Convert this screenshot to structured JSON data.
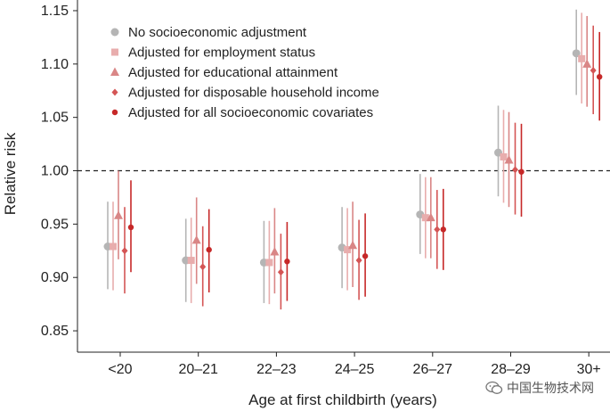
{
  "chart_data": {
    "type": "scatter",
    "subtype": "point-range",
    "xlabel": "Age at first childbirth (years)",
    "ylabel": "Relative risk",
    "categories": [
      "<20",
      "20–21",
      "22–23",
      "24–25",
      "26–27",
      "28–29",
      "30+"
    ],
    "ylim": [
      0.83,
      1.16
    ],
    "yticks": [
      0.85,
      0.9,
      0.95,
      1.0,
      1.05,
      1.1,
      1.15
    ],
    "ytick_labels": [
      "0.85",
      "0.90",
      "0.95",
      "1.00",
      "1.05",
      "1.10",
      "1.15"
    ],
    "reference_line": 1.0,
    "legend_position": "top-left",
    "series": [
      {
        "name": "No socioeconomic adjustment",
        "marker": "circle",
        "color": "#b5b5b5",
        "values": [
          0.929,
          0.916,
          0.914,
          0.928,
          0.959,
          1.017,
          1.11
        ],
        "lower": [
          0.889,
          0.877,
          0.876,
          0.89,
          0.922,
          0.976,
          1.071
        ],
        "upper": [
          0.971,
          0.955,
          0.953,
          0.966,
          0.997,
          1.061,
          1.151
        ]
      },
      {
        "name": "Adjusted for employment status",
        "marker": "square",
        "color": "#e8adad",
        "values": [
          0.929,
          0.916,
          0.914,
          0.926,
          0.956,
          1.013,
          1.105
        ],
        "lower": [
          0.888,
          0.876,
          0.875,
          0.888,
          0.918,
          0.97,
          1.063
        ],
        "upper": [
          0.971,
          0.956,
          0.953,
          0.965,
          0.994,
          1.057,
          1.148
        ]
      },
      {
        "name": "Adjusted for educational attainment",
        "marker": "triangle",
        "color": "#d98686",
        "values": [
          0.958,
          0.935,
          0.924,
          0.93,
          0.956,
          1.01,
          1.1
        ],
        "lower": [
          0.917,
          0.894,
          0.885,
          0.891,
          0.918,
          0.966,
          1.06
        ],
        "upper": [
          1.0,
          0.975,
          0.965,
          0.971,
          0.994,
          1.055,
          1.145
        ]
      },
      {
        "name": "Adjusted for disposable household income",
        "marker": "diamond",
        "color": "#d45555",
        "values": [
          0.925,
          0.91,
          0.905,
          0.916,
          0.945,
          1.001,
          1.094
        ],
        "lower": [
          0.885,
          0.873,
          0.87,
          0.879,
          0.908,
          0.959,
          1.053
        ],
        "upper": [
          0.966,
          0.948,
          0.941,
          0.954,
          0.982,
          1.045,
          1.136
        ]
      },
      {
        "name": "Adjusted for all socioeconomic covariates",
        "marker": "circle-small",
        "color": "#c62828",
        "values": [
          0.947,
          0.926,
          0.915,
          0.92,
          0.945,
          0.999,
          1.088
        ],
        "lower": [
          0.905,
          0.886,
          0.878,
          0.882,
          0.907,
          0.957,
          1.047
        ],
        "upper": [
          0.991,
          0.964,
          0.952,
          0.96,
          0.983,
          1.044,
          1.13
        ]
      }
    ]
  },
  "watermark": {
    "icon": "wechat-icon",
    "text": "中国生物技术网"
  }
}
